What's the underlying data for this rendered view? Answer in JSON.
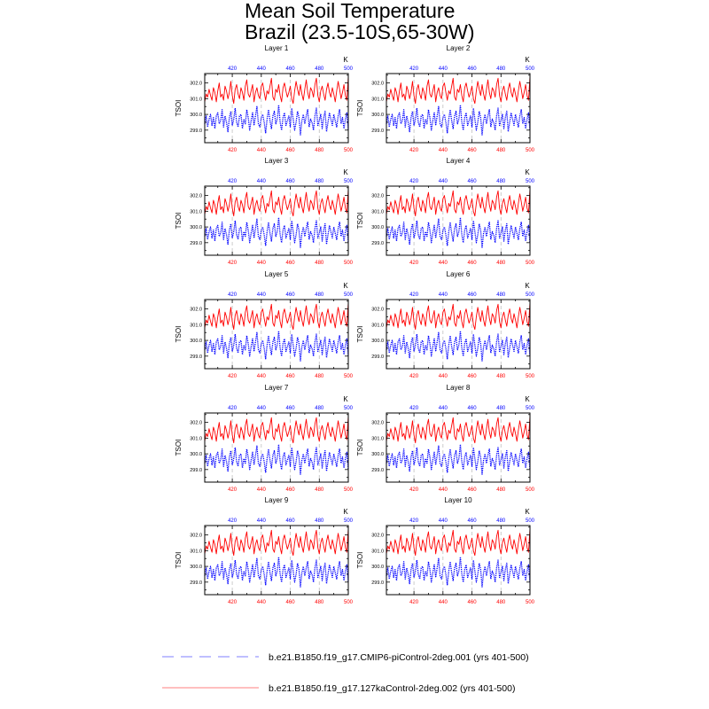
{
  "title_line1": "Mean Soil Temperature",
  "title_line2": "Brazil (23.5-10S,65-30W)",
  "colors": {
    "exp1": "#0000ff",
    "exp2": "#ff0000",
    "axis": "#000000",
    "grid": "#bfbfbf"
  },
  "legend": [
    {
      "label": "b.e21.B1850.f19_g17.CMIP6-piControl-2deg.001 (yrs 401-500)",
      "color": "#7f7fff",
      "style": "dashed"
    },
    {
      "label": "b.e21.B1850.f19_g17.127kaControl-2deg.002 (yrs 401-500)",
      "color": "#ff7f7f",
      "style": "solid"
    }
  ],
  "chart_data": {
    "type": "line",
    "ylabel": "TSOI",
    "unit_label": "K",
    "xlim": [
      401,
      500
    ],
    "ylim": [
      298.2,
      302.6
    ],
    "xticks": [
      420,
      440,
      460,
      480,
      500
    ],
    "yticks": [
      299.0,
      300.0,
      301.0,
      302.0
    ],
    "ytick_labels": [
      "299.0",
      "300.0",
      "301.0",
      "302.0"
    ],
    "panels": [
      {
        "label": "Layer 1"
      },
      {
        "label": "Layer 2"
      },
      {
        "label": "Layer 3"
      },
      {
        "label": "Layer 4"
      },
      {
        "label": "Layer 5"
      },
      {
        "label": "Layer 6"
      },
      {
        "label": "Layer 7"
      },
      {
        "label": "Layer 8"
      },
      {
        "label": "Layer 9"
      },
      {
        "label": "Layer 10"
      }
    ],
    "series_key": [
      "exp1",
      "exp2"
    ],
    "series": [
      {
        "key": "exp1",
        "values": [
          299.4,
          299.9,
          299.2,
          299.7,
          300.0,
          299.3,
          299.8,
          299.1,
          299.9,
          300.1,
          299.4,
          299.6,
          300.3,
          299.2,
          299.9,
          299.5,
          298.9,
          299.8,
          300.2,
          299.3,
          299.7,
          300.4,
          299.5,
          299.2,
          299.9,
          300.0,
          299.1,
          299.7,
          299.4,
          300.3,
          299.8,
          299.0,
          299.6,
          300.1,
          299.3,
          299.9,
          300.5,
          299.4,
          299.2,
          299.8,
          300.0,
          299.5,
          298.8,
          299.7,
          300.3,
          299.6,
          299.1,
          299.9,
          300.2,
          299.4,
          299.7,
          300.6,
          299.5,
          299.0,
          299.8,
          300.1,
          299.3,
          299.6,
          299.9,
          299.2,
          300.4,
          299.7,
          299.0,
          299.5,
          300.2,
          299.8,
          298.7,
          299.6,
          300.0,
          299.4,
          299.9,
          300.3,
          299.2,
          299.7,
          299.5,
          299.0,
          299.9,
          300.4,
          299.3,
          299.6,
          300.0,
          299.1,
          299.8,
          300.2,
          298.9,
          299.5,
          300.1,
          299.7,
          299.3,
          300.0,
          299.6,
          299.2,
          299.9,
          300.3,
          299.4,
          299.8,
          299.1,
          299.7,
          300.1,
          299.0
        ]
      },
      {
        "key": "exp2",
        "values": [
          300.8,
          301.3,
          301.1,
          301.6,
          301.2,
          300.9,
          301.7,
          301.4,
          300.8,
          301.5,
          302.0,
          301.1,
          301.3,
          300.9,
          301.8,
          301.5,
          301.0,
          301.4,
          302.1,
          301.2,
          300.7,
          301.6,
          301.9,
          301.3,
          301.0,
          301.7,
          301.4,
          300.9,
          301.8,
          302.2,
          301.3,
          301.1,
          301.5,
          301.9,
          300.8,
          301.4,
          301.7,
          301.2,
          301.0,
          301.8,
          302.0,
          301.4,
          300.9,
          301.5,
          301.3,
          301.8,
          302.3,
          301.1,
          300.9,
          301.6,
          301.4,
          301.9,
          301.2,
          300.8,
          301.7,
          302.0,
          301.5,
          301.1,
          301.4,
          301.8,
          301.0,
          300.7,
          301.5,
          302.1,
          301.6,
          301.2,
          301.9,
          301.3,
          300.9,
          301.6,
          302.2,
          301.4,
          301.0,
          301.7,
          301.5,
          301.1,
          301.9,
          302.3,
          301.2,
          300.8,
          301.5,
          301.8,
          301.3,
          300.9,
          301.6,
          302.0,
          301.4,
          301.1,
          301.7,
          301.3,
          300.8,
          301.5,
          302.1,
          301.6,
          301.0,
          301.4,
          301.9,
          301.2,
          300.9,
          302.4
        ]
      }
    ]
  }
}
